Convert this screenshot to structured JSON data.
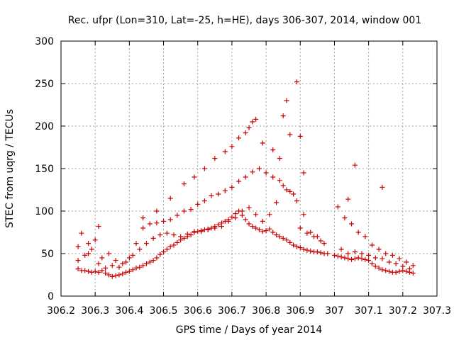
{
  "chart_data": {
    "type": "scatter",
    "title": "Rec. ufpr (Lon=310, Lat=-25, h=HE), days 306-307, 2014, window 001",
    "xlabel": "GPS time / Days of year 2014",
    "ylabel": "STEC from uqrg / TECUs",
    "xlim": [
      306.2,
      307.3
    ],
    "ylim": [
      0,
      300
    ],
    "xticks": [
      "306.2",
      "306.3",
      "306.4",
      "306.5",
      "306.6",
      "306.7",
      "306.8",
      "306.9",
      "307",
      "307.1",
      "307.2",
      "307.3"
    ],
    "yticks": [
      "0",
      "50",
      "100",
      "150",
      "200",
      "250",
      "300"
    ],
    "grid": true,
    "marker": "+",
    "marker_color": "#cc0000",
    "series": [
      {
        "x": [
          306.25,
          306.26,
          306.27,
          306.28,
          306.29,
          306.3,
          306.31,
          306.32,
          306.33,
          306.34,
          306.35,
          306.36,
          306.37,
          306.38,
          306.39,
          306.4,
          306.41,
          306.42,
          306.43,
          306.44,
          306.45,
          306.46,
          306.47,
          306.48,
          306.49,
          306.5,
          306.51,
          306.52,
          306.53,
          306.54,
          306.55,
          306.56,
          306.57,
          306.58,
          306.59,
          306.6,
          306.61,
          306.62,
          306.63,
          306.64,
          306.65,
          306.66,
          306.67,
          306.68,
          306.69,
          306.7,
          306.71,
          306.72,
          306.73,
          306.74,
          306.75,
          306.76,
          306.77,
          306.78,
          306.79,
          306.8,
          306.81,
          306.82,
          306.83,
          306.84,
          306.85,
          306.86,
          306.87,
          306.88,
          306.89,
          306.9,
          306.91,
          306.92,
          306.93,
          306.94,
          306.95,
          306.96,
          306.97,
          306.98,
          307.0,
          307.01,
          307.02,
          307.03,
          307.04,
          307.05,
          307.06,
          307.07,
          307.08,
          307.09,
          307.1,
          307.11,
          307.12,
          307.13,
          307.14,
          307.15,
          307.16,
          307.17,
          307.18,
          307.19,
          307.2,
          307.21,
          307.22,
          307.23,
          306.25,
          306.27,
          306.29,
          306.31,
          306.33,
          306.35,
          306.37,
          306.39,
          306.41,
          306.43,
          306.45,
          306.47,
          306.49,
          306.51,
          306.53,
          306.55,
          306.57,
          306.59,
          306.61,
          306.63,
          306.65,
          306.67,
          306.69,
          306.71,
          306.73,
          306.75,
          306.77,
          306.79,
          306.81,
          306.83,
          306.85,
          306.87,
          306.89,
          306.91,
          306.93,
          306.95,
          306.97,
          307.01,
          307.03,
          307.05,
          307.07,
          307.09,
          307.11,
          307.13,
          307.15,
          307.17,
          307.19,
          307.21,
          307.23,
          306.26,
          306.28,
          306.3,
          306.32,
          306.34,
          306.36,
          306.38,
          306.4,
          306.42,
          306.44,
          306.46,
          306.48,
          306.5,
          306.52,
          306.54,
          306.56,
          306.58,
          306.6,
          306.62,
          306.64,
          306.66,
          306.68,
          306.7,
          306.72,
          306.74,
          306.76,
          306.78,
          306.8,
          306.82,
          306.84,
          306.86,
          306.88,
          306.9,
          306.92,
          306.94,
          306.96,
          307.02,
          307.04,
          307.06,
          307.08,
          307.1,
          307.12,
          307.14,
          307.16,
          307.18,
          307.2,
          307.22,
          306.25,
          306.28,
          306.31,
          306.44,
          306.48,
          306.52,
          306.56,
          306.59,
          306.62,
          306.65,
          306.68,
          306.7,
          306.72,
          306.74,
          306.75,
          306.76,
          306.77,
          306.79,
          306.82,
          306.84,
          306.85,
          306.86,
          306.87,
          306.89,
          306.9,
          306.91,
          307.04,
          307.06,
          307.14
        ],
        "y": [
          32,
          30,
          30,
          29,
          28,
          29,
          28,
          30,
          27,
          25,
          23,
          24,
          25,
          26,
          28,
          29,
          31,
          33,
          34,
          36,
          38,
          40,
          42,
          45,
          49,
          52,
          55,
          58,
          60,
          63,
          66,
          68,
          70,
          72,
          75,
          76,
          77,
          78,
          79,
          80,
          82,
          84,
          86,
          88,
          90,
          93,
          97,
          100,
          95,
          90,
          85,
          82,
          80,
          78,
          76,
          77,
          79,
          75,
          72,
          70,
          68,
          66,
          63,
          60,
          58,
          57,
          55,
          54,
          53,
          52,
          52,
          51,
          50,
          50,
          48,
          47,
          46,
          45,
          44,
          43,
          44,
          45,
          44,
          43,
          42,
          38,
          35,
          33,
          31,
          30,
          29,
          28,
          28,
          29,
          30,
          29,
          28,
          27,
          58,
          48,
          55,
          38,
          33,
          36,
          34,
          40,
          48,
          55,
          62,
          68,
          72,
          74,
          72,
          70,
          73,
          76,
          76,
          78,
          80,
          82,
          88,
          92,
          100,
          104,
          96,
          88,
          96,
          110,
          130,
          123,
          112,
          96,
          75,
          70,
          62,
          105,
          92,
          85,
          75,
          70,
          60,
          55,
          50,
          48,
          44,
          40,
          36,
          74,
          62,
          66,
          45,
          50,
          42,
          38,
          45,
          62,
          80,
          85,
          86,
          88,
          90,
          95,
          100,
          102,
          108,
          112,
          118,
          120,
          124,
          128,
          135,
          140,
          146,
          150,
          145,
          140,
          136,
          125,
          120,
          80,
          74,
          70,
          65,
          55,
          50,
          52,
          50,
          48,
          45,
          44,
          40,
          38,
          35,
          32,
          42,
          50,
          82,
          92,
          100,
          115,
          132,
          140,
          150,
          162,
          170,
          176,
          186,
          192,
          198,
          205,
          208,
          180,
          172,
          162,
          212,
          230,
          190,
          252,
          188,
          145,
          114,
          154,
          128
        ]
      }
    ]
  }
}
